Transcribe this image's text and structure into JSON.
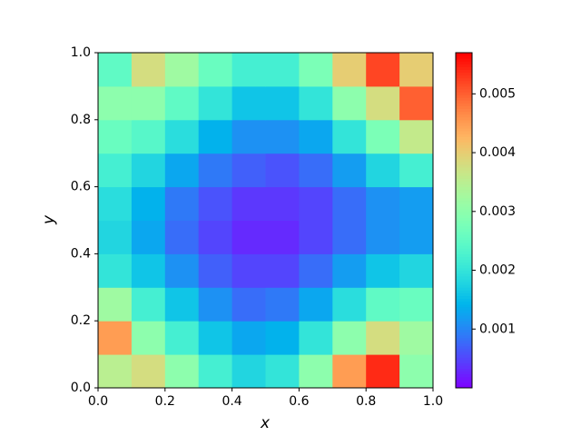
{
  "chart_data": {
    "type": "heatmap",
    "xlabel": "x",
    "ylabel": "y",
    "xlim": [
      0,
      1
    ],
    "ylim": [
      0,
      1
    ],
    "xticks": [
      {
        "value": 0,
        "label": "0.0"
      },
      0.2,
      0.4,
      0.6,
      0.8,
      {
        "value": 1,
        "label": "1.0"
      }
    ],
    "yticks": [
      {
        "value": 0,
        "label": "0.0"
      },
      0.2,
      0.4,
      0.6,
      0.8,
      {
        "value": 1,
        "label": "1.0"
      }
    ],
    "colormap": "rainbow",
    "clim": [
      0,
      0.0057
    ],
    "cticks": [
      0.001,
      0.002,
      0.003,
      0.004,
      0.005
    ],
    "z": [
      [
        0.0035,
        0.0038,
        0.003,
        0.0022,
        0.0018,
        0.002,
        0.003,
        0.0045,
        0.0054,
        0.003
      ],
      [
        0.0045,
        0.003,
        0.0022,
        0.0016,
        0.0013,
        0.0014,
        0.002,
        0.003,
        0.0038,
        0.0032
      ],
      [
        0.0032,
        0.0022,
        0.0016,
        0.0011,
        0.0008,
        0.0009,
        0.0013,
        0.0019,
        0.0025,
        0.0026
      ],
      [
        0.002,
        0.0016,
        0.0011,
        0.0007,
        0.0005,
        0.0005,
        0.0008,
        0.0012,
        0.0016,
        0.0018
      ],
      [
        0.0018,
        0.0013,
        0.0008,
        0.0005,
        0.0003,
        0.0003,
        0.0005,
        0.0008,
        0.0011,
        0.0012
      ],
      [
        0.0019,
        0.0014,
        0.0009,
        0.0006,
        0.0004,
        0.0004,
        0.0005,
        0.0008,
        0.0011,
        0.0012
      ],
      [
        0.0022,
        0.0018,
        0.0013,
        0.0009,
        0.0007,
        0.0006,
        0.0008,
        0.0012,
        0.0018,
        0.0022
      ],
      [
        0.0026,
        0.0024,
        0.0019,
        0.0014,
        0.0011,
        0.0011,
        0.0013,
        0.002,
        0.0028,
        0.0036
      ],
      [
        0.003,
        0.003,
        0.0025,
        0.002,
        0.0016,
        0.0016,
        0.002,
        0.003,
        0.0038,
        0.005
      ],
      [
        0.0025,
        0.0038,
        0.0032,
        0.0026,
        0.0022,
        0.0022,
        0.0028,
        0.004,
        0.0052,
        0.004
      ]
    ]
  }
}
